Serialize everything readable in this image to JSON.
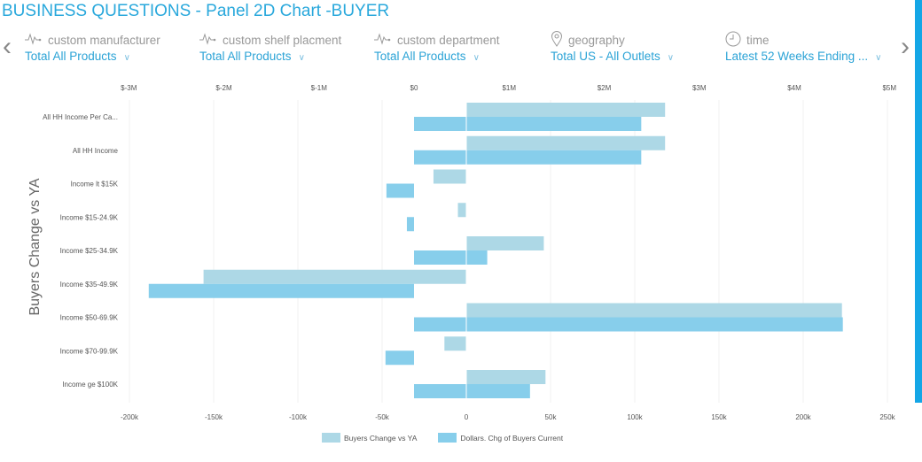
{
  "title": "BUSINESS QUESTIONS - Panel 2D Chart -BUYER",
  "filters": [
    {
      "icon": "pulse-icon",
      "label": "custom manufacturer",
      "value": "Total All Products"
    },
    {
      "icon": "pulse-icon",
      "label": "custom shelf placment",
      "value": "Total All Products"
    },
    {
      "icon": "pulse-icon",
      "label": "custom department",
      "value": "Total All Products"
    },
    {
      "icon": "location-pin-icon",
      "label": "geography",
      "value": "Total US - All Outlets"
    },
    {
      "icon": "clock-icon",
      "label": "time",
      "value": "Latest 52 Weeks Ending ..."
    }
  ],
  "colors": {
    "accent": "#29a8dc",
    "series1": "#add8e6",
    "series2": "#87ceeb"
  },
  "chart_data": {
    "type": "bar",
    "orientation": "horizontal",
    "ylabel": "Buyers Change vs YA",
    "categories": [
      "All HH Income Per Ca...",
      "All HH Income",
      "Income lt $15K",
      "Income $15-24.9K",
      "Income $25-34.9K",
      "Income $35-49.9K",
      "Income $50-69.9K",
      "Income $70-99.9K",
      "Income ge $100K"
    ],
    "series": [
      {
        "name": "Buyers Change vs YA",
        "axis": "bottom",
        "values": [
          118000,
          118000,
          -19500,
          -5000,
          46000,
          -156000,
          223000,
          -13000,
          47000
        ]
      },
      {
        "name": "Dollars. Chg of Buyers Current",
        "axis": "top",
        "values": [
          2390000,
          2390000,
          -290000,
          -75000,
          770000,
          -2790000,
          4510000,
          -300000,
          1220000
        ]
      }
    ],
    "bottom_axis": {
      "range": [
        -200000,
        250000
      ],
      "ticks": [
        -200000,
        -150000,
        -100000,
        -50000,
        0,
        50000,
        100000,
        150000,
        200000,
        250000
      ],
      "tick_labels": [
        "-200k",
        "-150k",
        "-100k",
        "-50k",
        "0",
        "50k",
        "100k",
        "150k",
        "200k",
        "250k"
      ]
    },
    "top_axis": {
      "range": [
        -3000000,
        5000000
      ],
      "ticks": [
        -3000000,
        -2000000,
        -1000000,
        0,
        1000000,
        2000000,
        3000000,
        4000000,
        5000000
      ],
      "tick_labels": [
        "$-3M",
        "$-2M",
        "$-1M",
        "$0",
        "$1M",
        "$2M",
        "$3M",
        "$4M",
        "$5M"
      ]
    },
    "legend": "bottom"
  }
}
